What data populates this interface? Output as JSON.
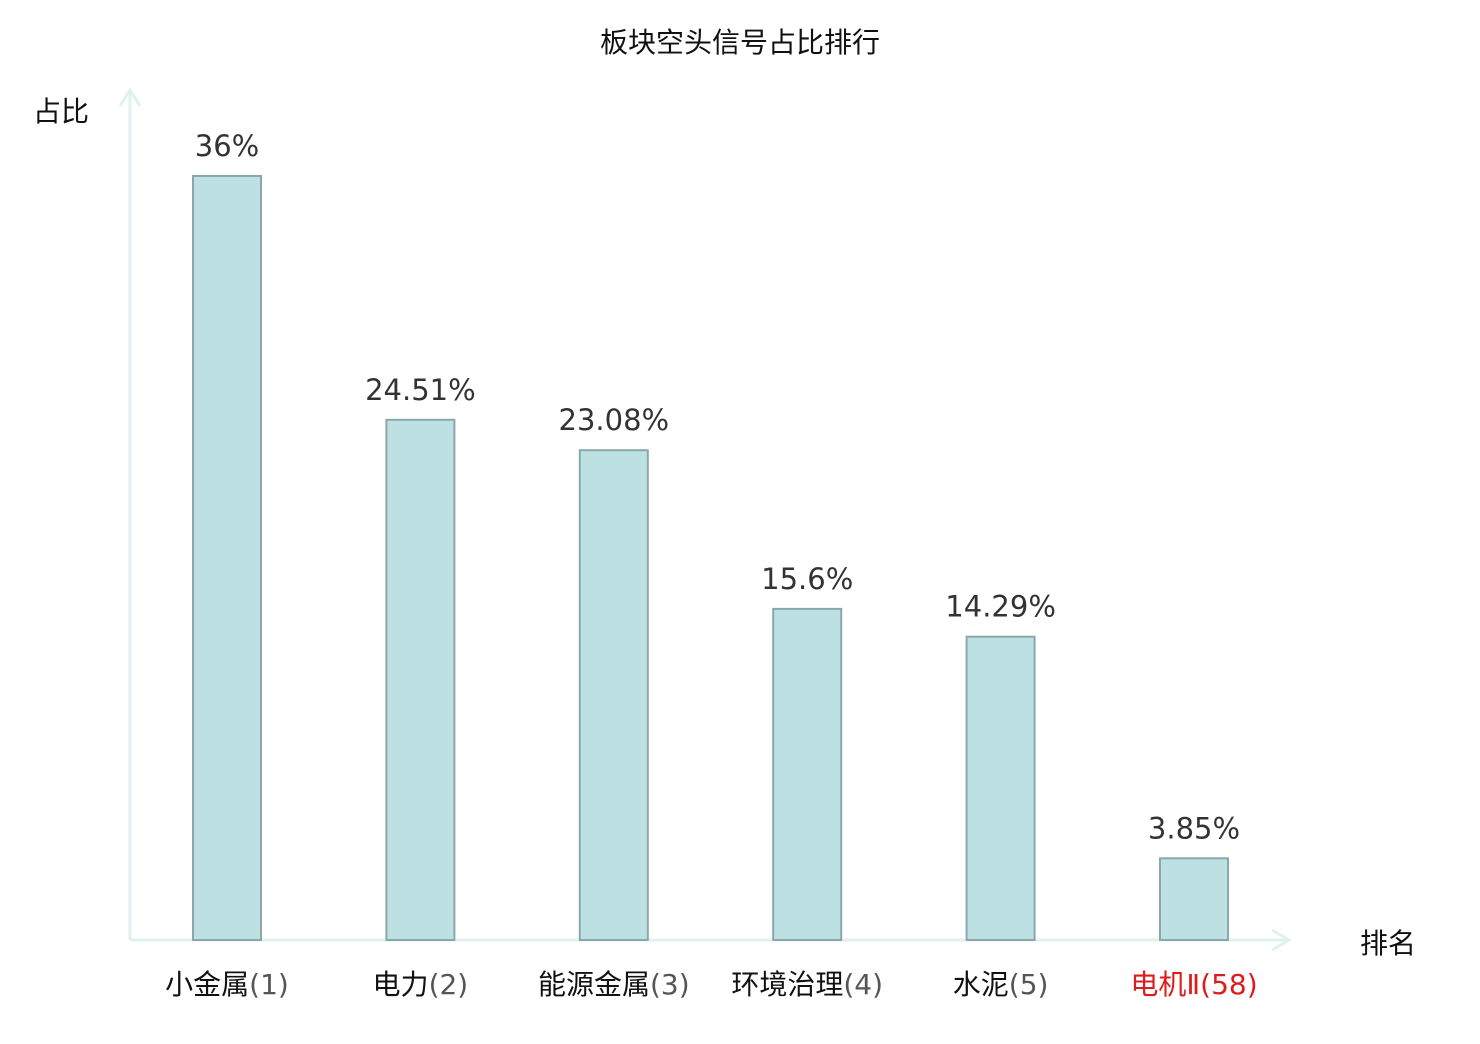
{
  "chart_data": {
    "type": "bar",
    "title": "板块空头信号占比排行",
    "ylabel": "占比",
    "xlabel": "排名",
    "categories": [
      "小金属",
      "电力",
      "能源金属",
      "环境治理",
      "水泥",
      "电机Ⅱ"
    ],
    "ranks": [
      "(1)",
      "(2)",
      "(3)",
      "(4)",
      "(5)",
      "(58)"
    ],
    "values": [
      36,
      24.51,
      23.08,
      15.6,
      14.29,
      3.85
    ],
    "value_labels": [
      "36%",
      "24.51%",
      "23.08%",
      "15.6%",
      "14.29%",
      "3.85%"
    ],
    "highlight_index": 5,
    "ylim": [
      0,
      36
    ],
    "grid": false,
    "legend": "none"
  },
  "colors": {
    "bar_fill": "#bde1e3",
    "bar_stroke": "#8aa8ab",
    "axis": "#dff2ef",
    "highlight_text": "#dd1c1c",
    "value_text": "#333333"
  }
}
